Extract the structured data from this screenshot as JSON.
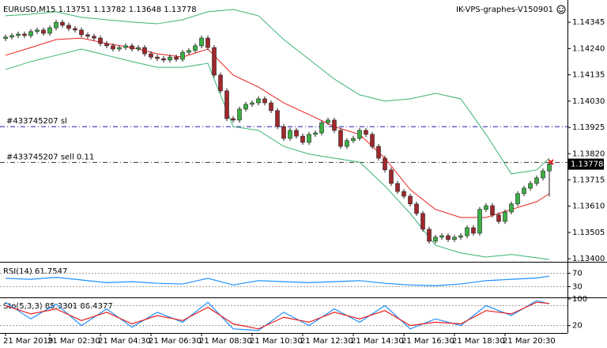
{
  "chart_data": [
    {
      "type": "candlestick",
      "title": "EURUSD,M15  1.13751 1.13782 1.13648 1.13778",
      "subtitle": "IK-VPS-graphes-V150901",
      "categories": [
        "21 Mar 2019",
        null,
        null,
        null,
        null,
        null,
        null,
        "21 Mar 02:30",
        null,
        null,
        null,
        null,
        null,
        null,
        null,
        "21 Mar 04:30",
        null,
        null,
        null,
        null,
        null,
        null,
        null,
        "21 Mar 06:30",
        null,
        null,
        null,
        null,
        null,
        null,
        null,
        "21 Mar 08:30",
        null,
        null,
        null,
        null,
        null,
        null,
        null,
        "21 Mar 10:30",
        null,
        null,
        null,
        null,
        null,
        null,
        null,
        "21 Mar 12:30",
        null,
        null,
        null,
        null,
        null,
        null,
        null,
        "21 Mar 14:30",
        null,
        null,
        null,
        null,
        null,
        null,
        null,
        "21 Mar 16:30",
        null,
        null,
        null,
        null,
        null,
        null,
        null,
        "21 Mar 18:30",
        null,
        null,
        null,
        null,
        null,
        null,
        null,
        "21 Mar 20:30",
        null,
        null,
        null,
        null,
        null,
        null,
        null
      ],
      "open": [
        1.1428,
        1.14286,
        1.14292,
        1.14298,
        1.14292,
        1.14308,
        1.14314,
        1.14301,
        1.14323,
        1.14345,
        1.14333,
        1.1432,
        1.14314,
        1.14295,
        1.14289,
        1.14282,
        1.1426,
        1.14251,
        1.14238,
        1.14244,
        1.14251,
        1.14238,
        1.14244,
        1.14219,
        1.14206,
        1.142,
        1.14194,
        1.14206,
        1.14197,
        1.14225,
        1.14232,
        1.14251,
        1.14282,
        1.14244,
        1.14134,
        1.14071,
        1.1396,
        1.13954,
        1.13998,
        1.14017,
        1.14023,
        1.14039,
        1.14023,
        1.13992,
        1.13928,
        1.13881,
        1.13913,
        1.1389,
        1.13865,
        1.13897,
        1.13903,
        1.13944,
        1.13954,
        1.13913,
        1.13849,
        1.13872,
        1.13881,
        1.13913,
        1.13897,
        1.13849,
        1.13802,
        1.13755,
        1.13701,
        1.13669,
        1.1365,
        1.13619,
        1.13581,
        1.13518,
        1.1347,
        1.13486,
        1.13492,
        1.13477,
        1.13486,
        1.13492,
        1.13524,
        1.13502,
        1.13597,
        1.13612,
        1.13575,
        1.13549,
        1.13587,
        1.13619,
        1.1366,
        1.13682,
        1.13701,
        1.13723,
        1.13751
      ],
      "high": [
        1.14296,
        1.14302,
        1.14308,
        1.14308,
        1.14318,
        1.14324,
        1.14324,
        1.14333,
        1.14355,
        1.14355,
        1.14343,
        1.1433,
        1.14324,
        1.14305,
        1.14299,
        1.14292,
        1.1427,
        1.14261,
        1.14254,
        1.14261,
        1.14261,
        1.14254,
        1.14254,
        1.14229,
        1.14216,
        1.1421,
        1.14216,
        1.14216,
        1.14235,
        1.14242,
        1.14261,
        1.14292,
        1.14292,
        1.14254,
        1.14144,
        1.14081,
        1.1397,
        1.14008,
        1.14027,
        1.14033,
        1.14049,
        1.14049,
        1.14033,
        1.14002,
        1.13938,
        1.13923,
        1.13923,
        1.139,
        1.13907,
        1.13913,
        1.13954,
        1.13964,
        1.13964,
        1.13923,
        1.13882,
        1.13891,
        1.13923,
        1.13923,
        1.13907,
        1.13859,
        1.13812,
        1.13765,
        1.13711,
        1.13679,
        1.1366,
        1.13629,
        1.13591,
        1.13528,
        1.13496,
        1.13502,
        1.13502,
        1.13496,
        1.13502,
        1.13534,
        1.13534,
        1.13607,
        1.13622,
        1.13622,
        1.13585,
        1.13597,
        1.13629,
        1.1367,
        1.13692,
        1.13711,
        1.13733,
        1.13761,
        1.13782
      ],
      "low": [
        1.1427,
        1.14276,
        1.14282,
        1.14282,
        1.14282,
        1.14298,
        1.14291,
        1.14291,
        1.14313,
        1.14323,
        1.1431,
        1.14304,
        1.14285,
        1.14279,
        1.14272,
        1.1425,
        1.14241,
        1.14228,
        1.14228,
        1.14234,
        1.14228,
        1.14228,
        1.14209,
        1.14196,
        1.1419,
        1.14184,
        1.14184,
        1.14187,
        1.14187,
        1.14215,
        1.14222,
        1.14241,
        1.14234,
        1.14124,
        1.14061,
        1.1395,
        1.13944,
        1.13944,
        1.13988,
        1.14007,
        1.14013,
        1.14013,
        1.13982,
        1.13918,
        1.13871,
        1.13871,
        1.1388,
        1.13855,
        1.13855,
        1.13887,
        1.13893,
        1.13934,
        1.13903,
        1.13839,
        1.13839,
        1.13862,
        1.13871,
        1.13887,
        1.13839,
        1.13792,
        1.13745,
        1.13691,
        1.13659,
        1.1364,
        1.13609,
        1.13571,
        1.13508,
        1.1346,
        1.1346,
        1.13476,
        1.13467,
        1.13467,
        1.13476,
        1.13482,
        1.13492,
        1.13492,
        1.13587,
        1.13565,
        1.13539,
        1.13539,
        1.13577,
        1.13609,
        1.1365,
        1.13672,
        1.13691,
        1.13713,
        1.13648
      ],
      "close": [
        1.14286,
        1.14292,
        1.14298,
        1.14292,
        1.14308,
        1.14314,
        1.14301,
        1.14323,
        1.14345,
        1.14333,
        1.1432,
        1.14314,
        1.14295,
        1.14289,
        1.14282,
        1.1426,
        1.14251,
        1.14238,
        1.14244,
        1.14251,
        1.14238,
        1.14244,
        1.14219,
        1.14206,
        1.142,
        1.14194,
        1.14206,
        1.14197,
        1.14225,
        1.14232,
        1.14251,
        1.14282,
        1.14244,
        1.14134,
        1.14071,
        1.1396,
        1.13954,
        1.13998,
        1.14017,
        1.14023,
        1.14039,
        1.14023,
        1.13992,
        1.13928,
        1.13881,
        1.13913,
        1.1389,
        1.13865,
        1.13897,
        1.13903,
        1.13944,
        1.13954,
        1.13913,
        1.13849,
        1.13872,
        1.13881,
        1.13913,
        1.13897,
        1.13849,
        1.13802,
        1.13755,
        1.13701,
        1.13669,
        1.1365,
        1.13619,
        1.13581,
        1.13518,
        1.1347,
        1.13486,
        1.13492,
        1.13477,
        1.13486,
        1.13492,
        1.13524,
        1.13502,
        1.13597,
        1.13612,
        1.13575,
        1.13549,
        1.13587,
        1.13619,
        1.1366,
        1.13682,
        1.13701,
        1.13723,
        1.13751,
        1.13778
      ],
      "up_color": "#3cb043",
      "down_color": "#a0282d",
      "lines": [
        {
          "color": "#3cb371",
          "x": [
            0,
            4,
            8,
            12,
            16,
            20,
            24,
            28,
            32,
            36,
            40,
            44,
            48,
            52,
            56,
            60,
            64,
            68,
            72,
            76,
            80,
            84,
            86
          ],
          "values": [
            1.14371,
            1.14377,
            1.14387,
            1.14365,
            1.14355,
            1.14346,
            1.14339,
            1.14355,
            1.14387,
            1.14396,
            1.14371,
            1.14276,
            1.14197,
            1.14118,
            1.14055,
            1.1403,
            1.14039,
            1.14061,
            1.14039,
            1.13897,
            1.13739,
            1.13755,
            1.13802
          ]
        },
        {
          "color": "#3cb371",
          "x": [
            0,
            4,
            8,
            12,
            16,
            20,
            24,
            28,
            32,
            36,
            40,
            44,
            48,
            52,
            56,
            60,
            64,
            68,
            72,
            76,
            80,
            84,
            86
          ],
          "values": [
            1.14156,
            1.14188,
            1.14213,
            1.14238,
            1.14213,
            1.14188,
            1.14165,
            1.14165,
            1.14181,
            1.13928,
            1.13913,
            1.13849,
            1.13818,
            1.13802,
            1.13786,
            1.13691,
            1.13581,
            1.13454,
            1.13423,
            1.13407,
            1.13417,
            1.13404,
            1.13397
          ]
        },
        {
          "color": "#e8201e",
          "x": [
            0,
            4,
            8,
            12,
            16,
            20,
            24,
            28,
            32,
            36,
            40,
            44,
            48,
            52,
            56,
            60,
            64,
            68,
            72,
            76,
            80,
            84,
            86
          ],
          "values": [
            1.14213,
            1.14244,
            1.14276,
            1.14282,
            1.1426,
            1.14244,
            1.14219,
            1.14206,
            1.14238,
            1.14134,
            1.14086,
            1.14023,
            1.13976,
            1.13928,
            1.13897,
            1.13802,
            1.13676,
            1.13597,
            1.13565,
            1.13565,
            1.13597,
            1.13628,
            1.1366
          ]
        }
      ],
      "orders": [
        {
          "label": "#433745207 sl",
          "value": 1.13928,
          "color": "#1a1aa6"
        },
        {
          "label": "#433745207 sell 0.11",
          "value": 1.13785,
          "color": "#333333"
        }
      ],
      "bid": 1.13778,
      "ylim": [
        1.13391,
        1.14434
      ],
      "yticks": [
        1.14345,
        {
          "value": 1.1424,
          "label": "1.14240"
        },
        1.14135,
        {
          "value": 1.1403,
          "label": "1.14030"
        },
        1.13925,
        {
          "value": 1.1382,
          "label": "1.13820"
        },
        1.13715,
        {
          "value": 1.1361,
          "label": "1.13610"
        },
        1.13505,
        {
          "value": 1.134,
          "label": "1.13400"
        }
      ]
    },
    {
      "type": "line",
      "title": "RSI(14) 61.7547",
      "x": [
        0,
        4,
        8,
        12,
        16,
        20,
        24,
        28,
        32,
        36,
        40,
        44,
        48,
        52,
        56,
        60,
        64,
        68,
        72,
        76,
        80,
        84,
        86
      ],
      "values": [
        55,
        52,
        58,
        50,
        42,
        45,
        40,
        38,
        55,
        35,
        48,
        45,
        42,
        45,
        48,
        40,
        35,
        33,
        38,
        48,
        52,
        56,
        61.7547
      ],
      "color": "#1e90ff",
      "ylim": [
        0,
        100
      ],
      "yticks": [
        70,
        30
      ],
      "levels": [
        70,
        30
      ]
    },
    {
      "type": "line",
      "title": "Sto(5,3,3) 85.3301 86.4377",
      "x": [
        0,
        4,
        8,
        12,
        16,
        20,
        24,
        28,
        32,
        36,
        40,
        44,
        48,
        52,
        56,
        60,
        64,
        68,
        72,
        76,
        80,
        84,
        86
      ],
      "series": [
        {
          "color": "#1e90ff",
          "values": [
            90,
            40,
            85,
            20,
            70,
            15,
            60,
            30,
            90,
            10,
            5,
            60,
            20,
            70,
            30,
            80,
            10,
            40,
            20,
            80,
            50,
            95,
            85.3301
          ]
        },
        {
          "color": "#e8201e",
          "values": [
            80,
            55,
            70,
            35,
            60,
            25,
            50,
            35,
            75,
            25,
            10,
            45,
            30,
            60,
            40,
            65,
            20,
            30,
            25,
            65,
            55,
            90,
            86.4377
          ]
        }
      ],
      "ylim": [
        0,
        100
      ],
      "yticks": [
        100,
        20
      ],
      "levels": [
        80,
        20
      ]
    }
  ]
}
